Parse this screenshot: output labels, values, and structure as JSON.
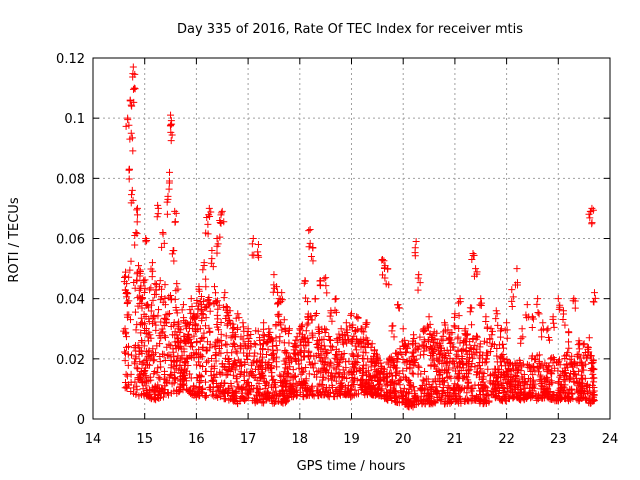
{
  "chart_data": {
    "type": "scatter",
    "title": "Day 335 of 2016, Rate Of TEC Index for receiver mtis",
    "xlabel": "GPS time / hours",
    "ylabel": "ROTI / TECUs",
    "xlim": [
      14,
      24
    ],
    "ylim": [
      0,
      0.12
    ],
    "x_ticks": [
      "14",
      "15",
      "16",
      "17",
      "18",
      "19",
      "20",
      "21",
      "22",
      "23",
      "24"
    ],
    "y_ticks": [
      "0",
      "0.02",
      "0.04",
      "0.06",
      "0.08",
      "0.1",
      "0.12"
    ],
    "grid": true,
    "marker": "+",
    "color": "#ff0000",
    "series": [
      {
        "name": "ROTI",
        "x": [
          14.62,
          14.65,
          14.67,
          14.7,
          14.72,
          14.74,
          14.76,
          14.78,
          14.8,
          14.83,
          14.86,
          14.88,
          14.92,
          14.95,
          14.98,
          15.02,
          15.05,
          15.1,
          15.15,
          15.2,
          15.25,
          15.3,
          15.35,
          15.4,
          15.45,
          15.48,
          15.5,
          15.52,
          15.55,
          15.58,
          15.62,
          15.65,
          15.7,
          15.75,
          15.8,
          15.85,
          15.9,
          15.95,
          16.0,
          16.05,
          16.1,
          16.15,
          16.2,
          16.25,
          16.3,
          16.35,
          16.4,
          16.45,
          16.5,
          16.55,
          16.6,
          16.65,
          16.7,
          16.75,
          16.8,
          16.9,
          17.0,
          17.1,
          17.2,
          17.3,
          17.4,
          17.5,
          17.55,
          17.6,
          17.65,
          17.7,
          17.8,
          17.9,
          18.0,
          18.05,
          18.1,
          18.15,
          18.2,
          18.25,
          18.3,
          18.4,
          18.5,
          18.6,
          18.7,
          18.8,
          18.9,
          19.0,
          19.1,
          19.2,
          19.3,
          19.4,
          19.5,
          19.6,
          19.65,
          19.7,
          19.8,
          19.9,
          20.0,
          20.1,
          20.2,
          20.25,
          20.3,
          20.4,
          20.5,
          20.6,
          20.7,
          20.8,
          20.9,
          21.0,
          21.1,
          21.2,
          21.3,
          21.35,
          21.4,
          21.5,
          21.6,
          21.7,
          21.8,
          21.9,
          22.0,
          22.1,
          22.2,
          22.3,
          22.4,
          22.5,
          22.6,
          22.7,
          22.8,
          22.9,
          23.0,
          23.1,
          23.2,
          23.3,
          23.4,
          23.5,
          23.6,
          23.62,
          23.65,
          23.7
        ],
        "y": [
          0.03,
          0.045,
          0.1,
          0.083,
          0.106,
          0.095,
          0.076,
          0.117,
          0.11,
          0.062,
          0.07,
          0.051,
          0.04,
          0.032,
          0.046,
          0.06,
          0.038,
          0.028,
          0.052,
          0.045,
          0.071,
          0.046,
          0.062,
          0.038,
          0.074,
          0.082,
          0.101,
          0.098,
          0.056,
          0.069,
          0.045,
          0.03,
          0.026,
          0.038,
          0.032,
          0.028,
          0.04,
          0.035,
          0.034,
          0.044,
          0.038,
          0.052,
          0.067,
          0.07,
          0.056,
          0.044,
          0.06,
          0.066,
          0.069,
          0.042,
          0.037,
          0.036,
          0.03,
          0.028,
          0.035,
          0.032,
          0.03,
          0.06,
          0.058,
          0.032,
          0.03,
          0.048,
          0.044,
          0.04,
          0.042,
          0.033,
          0.03,
          0.025,
          0.03,
          0.028,
          0.046,
          0.039,
          0.063,
          0.057,
          0.04,
          0.046,
          0.047,
          0.036,
          0.04,
          0.03,
          0.032,
          0.035,
          0.034,
          0.03,
          0.032,
          0.025,
          0.02,
          0.053,
          0.051,
          0.05,
          0.031,
          0.038,
          0.03,
          0.025,
          0.028,
          0.059,
          0.048,
          0.03,
          0.034,
          0.029,
          0.025,
          0.032,
          0.027,
          0.035,
          0.04,
          0.03,
          0.037,
          0.055,
          0.05,
          0.04,
          0.034,
          0.03,
          0.036,
          0.03,
          0.032,
          0.043,
          0.05,
          0.03,
          0.038,
          0.034,
          0.04,
          0.032,
          0.03,
          0.034,
          0.04,
          0.036,
          0.029,
          0.04,
          0.026,
          0.025,
          0.027,
          0.069,
          0.07,
          0.042
        ],
        "band": [
          [
            14.6,
            0.01,
            0.05
          ],
          [
            14.7,
            0.009,
            0.052
          ],
          [
            14.8,
            0.008,
            0.055
          ],
          [
            14.9,
            0.007,
            0.05
          ],
          [
            15.0,
            0.008,
            0.048
          ],
          [
            15.1,
            0.007,
            0.045
          ],
          [
            15.2,
            0.006,
            0.042
          ],
          [
            15.3,
            0.007,
            0.04
          ],
          [
            15.4,
            0.007,
            0.046
          ],
          [
            15.5,
            0.008,
            0.045
          ],
          [
            15.6,
            0.008,
            0.038
          ],
          [
            15.7,
            0.009,
            0.032
          ],
          [
            15.8,
            0.01,
            0.03
          ],
          [
            15.9,
            0.008,
            0.036
          ],
          [
            16.0,
            0.007,
            0.04
          ],
          [
            16.1,
            0.008,
            0.042
          ],
          [
            16.2,
            0.007,
            0.045
          ],
          [
            16.3,
            0.008,
            0.04
          ],
          [
            16.4,
            0.007,
            0.042
          ],
          [
            16.5,
            0.007,
            0.038
          ],
          [
            16.6,
            0.006,
            0.036
          ],
          [
            16.7,
            0.006,
            0.034
          ],
          [
            16.8,
            0.005,
            0.03
          ],
          [
            16.9,
            0.006,
            0.03
          ],
          [
            17.0,
            0.006,
            0.028
          ],
          [
            17.1,
            0.005,
            0.03
          ],
          [
            17.2,
            0.006,
            0.03
          ],
          [
            17.3,
            0.005,
            0.03
          ],
          [
            17.4,
            0.006,
            0.03
          ],
          [
            17.5,
            0.005,
            0.032
          ],
          [
            17.6,
            0.006,
            0.035
          ],
          [
            17.7,
            0.005,
            0.03
          ],
          [
            17.8,
            0.007,
            0.02
          ],
          [
            18.0,
            0.008,
            0.03
          ],
          [
            18.1,
            0.007,
            0.033
          ],
          [
            18.2,
            0.008,
            0.035
          ],
          [
            18.3,
            0.007,
            0.032
          ],
          [
            18.4,
            0.008,
            0.03
          ],
          [
            18.5,
            0.008,
            0.03
          ],
          [
            18.6,
            0.007,
            0.028
          ],
          [
            18.7,
            0.007,
            0.028
          ],
          [
            18.8,
            0.008,
            0.03
          ],
          [
            18.9,
            0.008,
            0.03
          ],
          [
            19.0,
            0.007,
            0.032
          ],
          [
            19.1,
            0.008,
            0.032
          ],
          [
            19.2,
            0.008,
            0.03
          ],
          [
            19.3,
            0.008,
            0.028
          ],
          [
            19.4,
            0.008,
            0.026
          ],
          [
            19.6,
            0.007,
            0.018
          ],
          [
            19.7,
            0.006,
            0.02
          ],
          [
            19.8,
            0.006,
            0.022
          ],
          [
            19.9,
            0.005,
            0.024
          ],
          [
            20.0,
            0.005,
            0.025
          ],
          [
            20.1,
            0.004,
            0.026
          ],
          [
            20.2,
            0.004,
            0.028
          ],
          [
            20.3,
            0.005,
            0.028
          ],
          [
            20.4,
            0.005,
            0.03
          ],
          [
            20.5,
            0.005,
            0.028
          ],
          [
            20.6,
            0.005,
            0.03
          ],
          [
            20.7,
            0.006,
            0.028
          ],
          [
            20.8,
            0.005,
            0.03
          ],
          [
            20.9,
            0.005,
            0.03
          ],
          [
            21.0,
            0.006,
            0.028
          ],
          [
            21.1,
            0.005,
            0.032
          ],
          [
            21.2,
            0.006,
            0.03
          ],
          [
            21.3,
            0.006,
            0.032
          ],
          [
            21.4,
            0.006,
            0.028
          ],
          [
            21.5,
            0.005,
            0.026
          ],
          [
            21.6,
            0.005,
            0.03
          ],
          [
            21.7,
            0.006,
            0.03
          ],
          [
            21.8,
            0.007,
            0.025
          ],
          [
            21.9,
            0.006,
            0.028
          ],
          [
            22.0,
            0.006,
            0.02
          ],
          [
            22.1,
            0.007,
            0.018
          ],
          [
            22.2,
            0.007,
            0.02
          ],
          [
            22.3,
            0.006,
            0.02
          ],
          [
            22.4,
            0.007,
            0.02
          ],
          [
            22.5,
            0.007,
            0.022
          ],
          [
            22.6,
            0.006,
            0.022
          ],
          [
            22.7,
            0.007,
            0.02
          ],
          [
            22.8,
            0.007,
            0.02
          ],
          [
            22.9,
            0.006,
            0.022
          ],
          [
            23.0,
            0.006,
            0.02
          ],
          [
            23.1,
            0.007,
            0.02
          ],
          [
            23.2,
            0.006,
            0.024
          ],
          [
            23.3,
            0.007,
            0.022
          ],
          [
            23.4,
            0.006,
            0.024
          ],
          [
            23.5,
            0.007,
            0.022
          ],
          [
            23.6,
            0.005,
            0.025
          ],
          [
            23.7,
            0.006,
            0.022
          ]
        ]
      }
    ]
  }
}
